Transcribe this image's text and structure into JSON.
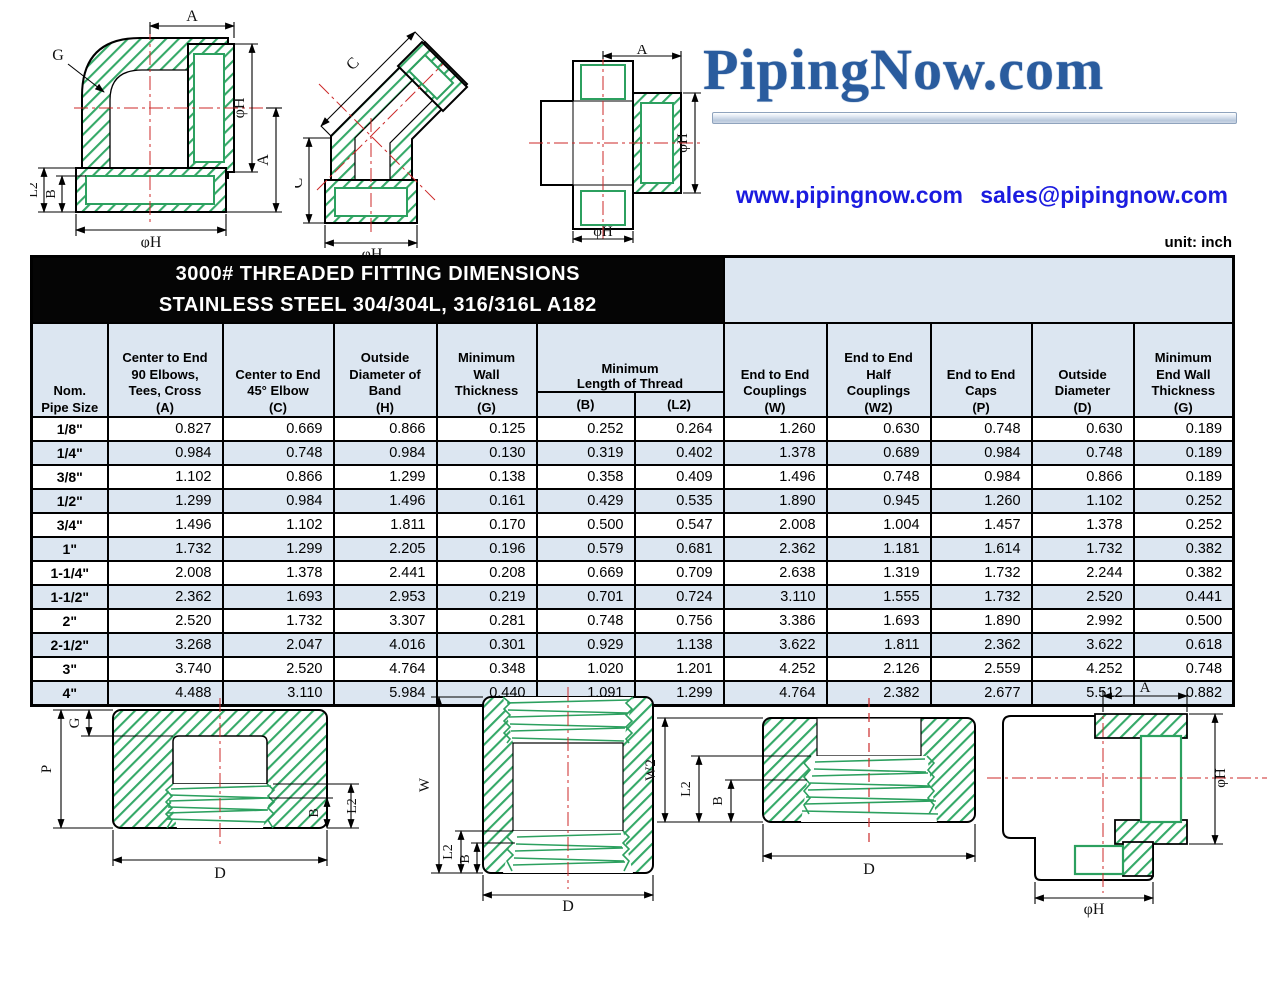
{
  "logo": {
    "text": "PipingNow.com",
    "website": "www.pipingnow.com",
    "email": "sales@pipingnow.com",
    "logo_color": "#2a5c9e",
    "link_color": "#1b1bdf"
  },
  "unit_label": "unit: inch",
  "title": {
    "line1": "3000# THREADED FITTING DIMENSIONS",
    "line2": "STAINLESS STEEL 304/304L, 316/316L  A182"
  },
  "table": {
    "columns": [
      {
        "label": "Nom.\nPipe Size"
      },
      {
        "label": "Center to End\n90 Elbows,\nTees, Cross\n(A)"
      },
      {
        "label": "Center to End\n45° Elbow\n(C)"
      },
      {
        "label": "Outside\nDiameter of\nBand\n(H)"
      },
      {
        "label": "Minimum\nWall\nThickness\n(G)"
      },
      {
        "label": "Minimum\nLength of Thread",
        "sub": {
          "b": "(B)",
          "l2": "(L2)"
        }
      },
      {
        "label": "End to End\nCouplings\n(W)"
      },
      {
        "label": "End to End\nHalf\nCouplings\n(W2)"
      },
      {
        "label": "End to End\nCaps\n(P)"
      },
      {
        "label": "Outside\nDiameter\n(D)"
      },
      {
        "label": "Minimum\nEnd Wall\nThickness\n(G)"
      }
    ],
    "rows": [
      {
        "size": "1/8\"",
        "values": [
          "0.827",
          "0.669",
          "0.866",
          "0.125",
          "0.252",
          "0.264",
          "1.260",
          "0.630",
          "0.748",
          "0.630",
          "0.189"
        ]
      },
      {
        "size": "1/4\"",
        "values": [
          "0.984",
          "0.748",
          "0.984",
          "0.130",
          "0.319",
          "0.402",
          "1.378",
          "0.689",
          "0.984",
          "0.748",
          "0.189"
        ]
      },
      {
        "size": "3/8\"",
        "values": [
          "1.102",
          "0.866",
          "1.299",
          "0.138",
          "0.358",
          "0.409",
          "1.496",
          "0.748",
          "0.984",
          "0.866",
          "0.189"
        ]
      },
      {
        "size": "1/2\"",
        "values": [
          "1.299",
          "0.984",
          "1.496",
          "0.161",
          "0.429",
          "0.535",
          "1.890",
          "0.945",
          "1.260",
          "1.102",
          "0.252"
        ]
      },
      {
        "size": "3/4\"",
        "values": [
          "1.496",
          "1.102",
          "1.811",
          "0.170",
          "0.500",
          "0.547",
          "2.008",
          "1.004",
          "1.457",
          "1.378",
          "0.252"
        ]
      },
      {
        "size": "1\"",
        "values": [
          "1.732",
          "1.299",
          "2.205",
          "0.196",
          "0.579",
          "0.681",
          "2.362",
          "1.181",
          "1.614",
          "1.732",
          "0.382"
        ]
      },
      {
        "size": "1-1/4\"",
        "values": [
          "2.008",
          "1.378",
          "2.441",
          "0.208",
          "0.669",
          "0.709",
          "2.638",
          "1.319",
          "1.732",
          "2.244",
          "0.382"
        ]
      },
      {
        "size": "1-1/2\"",
        "values": [
          "2.362",
          "1.693",
          "2.953",
          "0.219",
          "0.701",
          "0.724",
          "3.110",
          "1.555",
          "1.732",
          "2.520",
          "0.441"
        ]
      },
      {
        "size": "2\"",
        "values": [
          "2.520",
          "1.732",
          "3.307",
          "0.281",
          "0.748",
          "0.756",
          "3.386",
          "1.693",
          "1.890",
          "2.992",
          "0.500"
        ]
      },
      {
        "size": "2-1/2\"",
        "values": [
          "3.268",
          "2.047",
          "4.016",
          "0.301",
          "0.929",
          "1.138",
          "3.622",
          "1.811",
          "2.362",
          "3.622",
          "0.618"
        ]
      },
      {
        "size": "3\"",
        "values": [
          "3.740",
          "2.520",
          "4.764",
          "0.348",
          "1.020",
          "1.201",
          "4.252",
          "2.126",
          "2.559",
          "4.252",
          "0.748"
        ]
      },
      {
        "size": "4\"",
        "values": [
          "4.488",
          "3.110",
          "5.984",
          "0.440",
          "1.091",
          "1.299",
          "4.764",
          "2.382",
          "2.677",
          "5.512",
          "0.882"
        ]
      }
    ]
  },
  "drawings": {
    "colors": {
      "hatch_green": "#35a968",
      "thread_green": "#2ca05f",
      "centerline_red": "#cc2a2a"
    },
    "top": [
      {
        "name": "elbow-90",
        "labels": {
          "a_top": "A",
          "g": "G",
          "h_right": "φH",
          "a_right": "A",
          "l2": "L2",
          "b": "B",
          "h_bottom": "φH"
        }
      },
      {
        "name": "elbow-45",
        "labels": {
          "c_diag": "C",
          "c_left": "C",
          "h_bottom": "φH"
        }
      },
      {
        "name": "cross",
        "labels": {
          "a_top": "A",
          "h_right": "φH",
          "h_bottom": "φH"
        }
      }
    ],
    "bottom": [
      {
        "name": "cap-section",
        "labels": {
          "g": "G",
          "p": "P",
          "b": "B",
          "l2": "L2",
          "d": "D"
        }
      },
      {
        "name": "coupling-section",
        "labels": {
          "w": "W",
          "l2": "L2",
          "b": "B",
          "d": "D"
        }
      },
      {
        "name": "half-coupling-section",
        "labels": {
          "w2": "W2",
          "l2": "L2",
          "b": "B",
          "d": "D"
        }
      },
      {
        "name": "tee-side-view",
        "labels": {
          "a": "A",
          "h_right": "φH",
          "h_bottom": "φH"
        }
      }
    ]
  }
}
